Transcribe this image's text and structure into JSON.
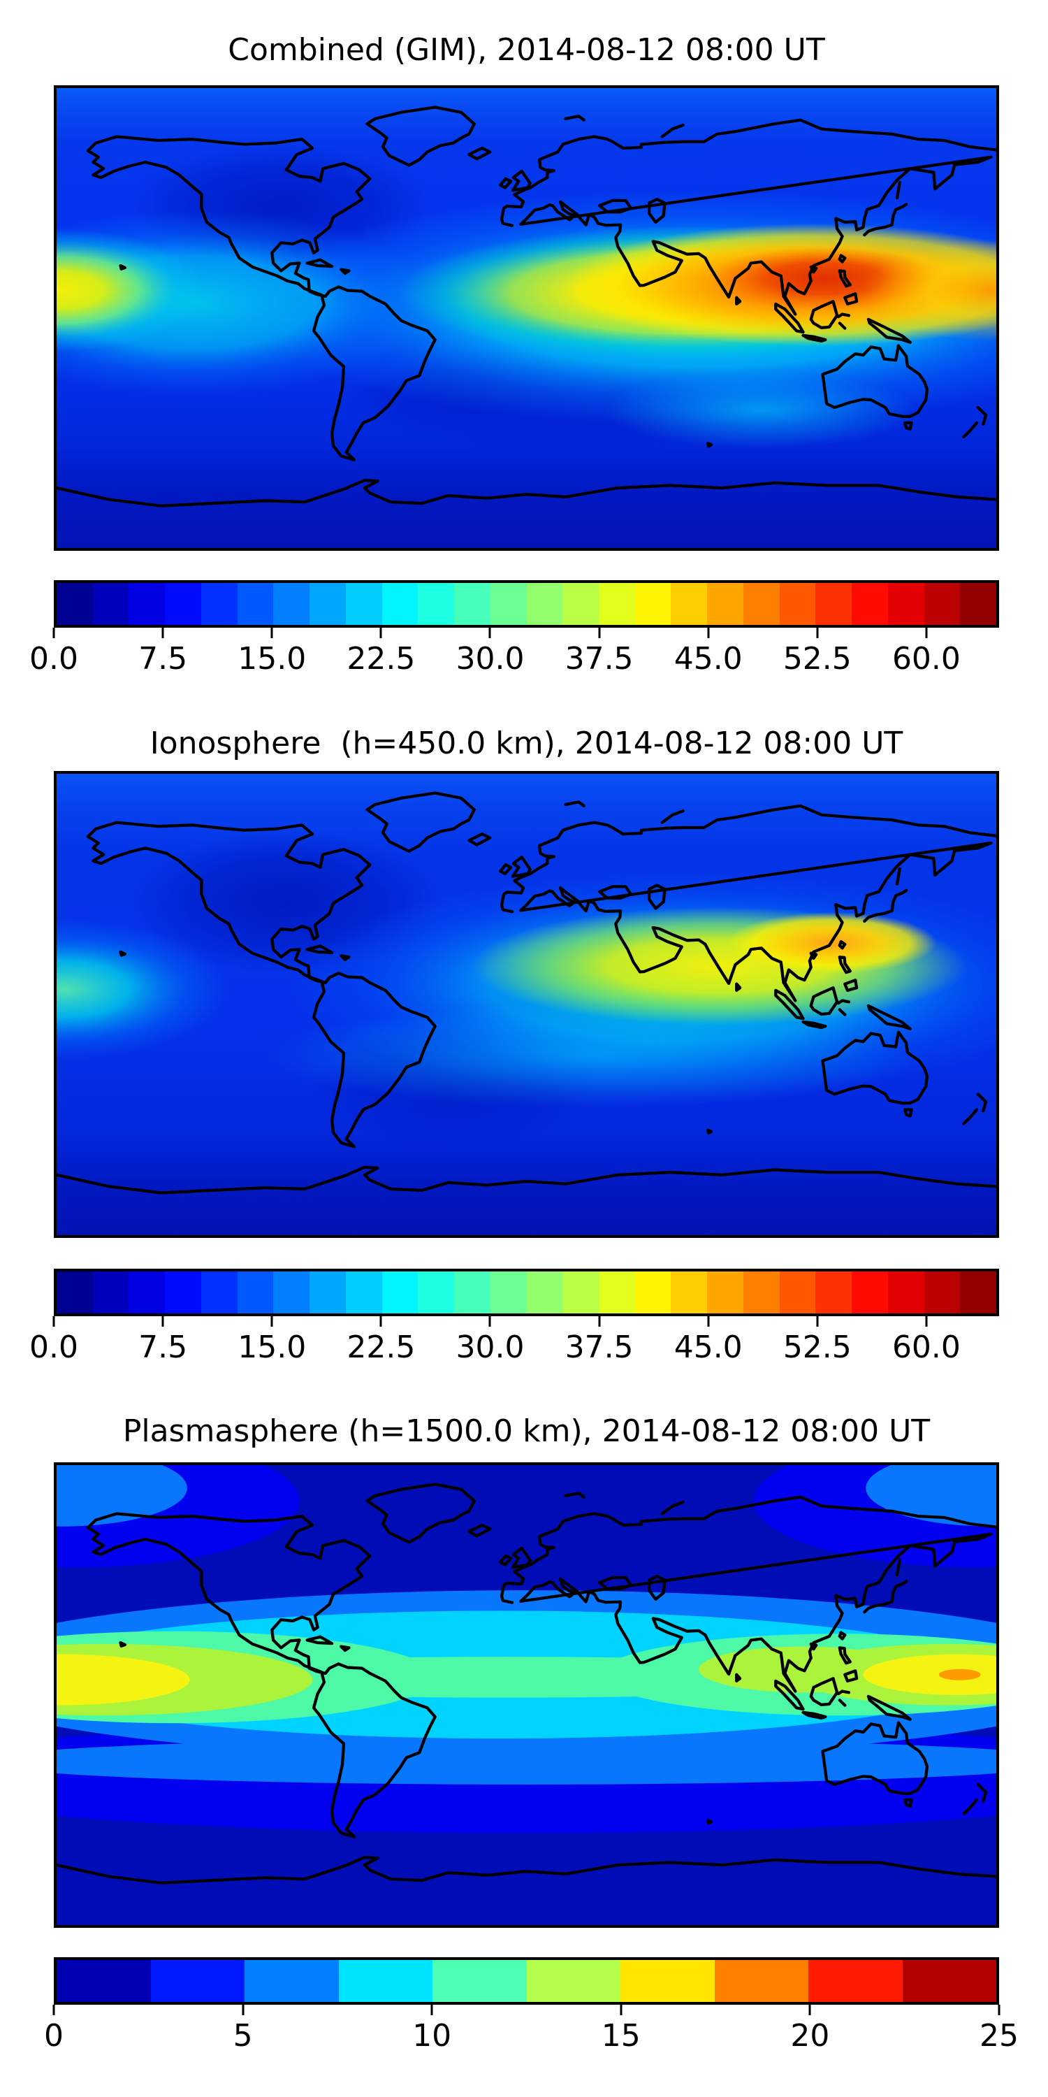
{
  "panels": [
    {
      "id": "combined",
      "title": "Combined (GIM), 2014-08-12 08:00 UT",
      "colorbar": {
        "orientation": "horizontal",
        "colormap": "jet",
        "vmin": 0,
        "vmax": 65,
        "segments": 26,
        "tick_values": [
          0,
          7.5,
          15,
          22.5,
          30,
          37.5,
          45,
          52.5,
          60
        ],
        "tick_labels": [
          "0.0",
          "7.5",
          "15.0",
          "22.5",
          "30.0",
          "37.5",
          "45.0",
          "52.5",
          "60.0"
        ]
      }
    },
    {
      "id": "ionosphere",
      "title": "Ionosphere  (h=450.0 km), 2014-08-12 08:00 UT",
      "colorbar": {
        "orientation": "horizontal",
        "colormap": "jet",
        "vmin": 0,
        "vmax": 65,
        "segments": 26,
        "tick_values": [
          0,
          7.5,
          15,
          22.5,
          30,
          37.5,
          45,
          52.5,
          60
        ],
        "tick_labels": [
          "0.0",
          "7.5",
          "15.0",
          "22.5",
          "30.0",
          "37.5",
          "45.0",
          "52.5",
          "60.0"
        ]
      }
    },
    {
      "id": "plasmasphere",
      "title": "Plasmasphere (h=1500.0 km), 2014-08-12 08:00 UT",
      "colorbar": {
        "orientation": "horizontal",
        "colormap": "jet",
        "vmin": 0,
        "vmax": 25,
        "segments": 10,
        "tick_values": [
          0,
          5,
          10,
          15,
          20,
          25
        ],
        "tick_labels": [
          "0",
          "5",
          "10",
          "15",
          "20",
          "25"
        ]
      }
    }
  ],
  "chart_data": [
    {
      "type": "heatmap",
      "title": "Combined (GIM), 2014-08-12 08:00 UT",
      "colormap": "jet",
      "projection": "equirectangular world map, lon -180..180, lat -90..90, black coastlines",
      "colorbar_ticks": [
        0,
        7.5,
        15,
        22.5,
        30,
        37.5,
        45,
        52.5,
        60
      ],
      "value_range": [
        0,
        65
      ],
      "features": [
        {
          "name": "primary-maximum",
          "lon": 110,
          "lat": 13,
          "approx_value": 57
        },
        {
          "name": "equatorial-anomaly-band",
          "lat": 10,
          "lon_range": [
            20,
            180
          ],
          "approx_value": "37-50"
        },
        {
          "name": "west-pacific-secondary-maximum",
          "lon": -178,
          "lat": 14,
          "approx_value": 42
        },
        {
          "name": "low-background",
          "region": "Americas and high latitudes",
          "approx_value": "5-15"
        },
        {
          "name": "antarctic-minimum",
          "lat_range": [
            -90,
            -60
          ],
          "approx_value": "3-8"
        }
      ]
    },
    {
      "type": "heatmap",
      "title": "Ionosphere  (h=450.0 km), 2014-08-12 08:00 UT",
      "colormap": "jet",
      "projection": "equirectangular world map, lon -180..180, lat -90..90, black coastlines",
      "colorbar_ticks": [
        0,
        7.5,
        15,
        22.5,
        30,
        37.5,
        45,
        52.5,
        60
      ],
      "value_range": [
        0,
        65
      ],
      "features": [
        {
          "name": "primary-maximum",
          "lon": 117,
          "lat": 19,
          "approx_value": 45
        },
        {
          "name": "yellow-band",
          "lat": 12,
          "lon_range": [
            20,
            150
          ],
          "approx_value": "30-40"
        },
        {
          "name": "west-pacific-patch",
          "lon": -177,
          "lat": 6,
          "approx_value": 25
        },
        {
          "name": "dark-minimum",
          "region": "North America and South Atlantic",
          "approx_value": "5-10"
        }
      ]
    },
    {
      "type": "heatmap",
      "title": "Plasmasphere (h=1500.0 km), 2014-08-12 08:00 UT",
      "colormap": "jet",
      "projection": "equirectangular world map, lon -180..180, lat -90..90, black coastlines",
      "colorbar_ticks": [
        0,
        5,
        10,
        15,
        20,
        25
      ],
      "value_range": [
        0,
        25
      ],
      "features": [
        {
          "name": "west-pacific-maximum",
          "lon": -179,
          "lat": 6,
          "approx_value": 17
        },
        {
          "name": "east-pacific-maximum",
          "lon": 166,
          "lat": 8,
          "approx_value": 20
        },
        {
          "name": "equatorial-cyan-band",
          "lat": 8,
          "lon_range": [
            -180,
            180
          ],
          "approx_value": "8-12"
        },
        {
          "name": "background",
          "region": "high latitudes",
          "approx_value": "0-3"
        }
      ]
    }
  ]
}
